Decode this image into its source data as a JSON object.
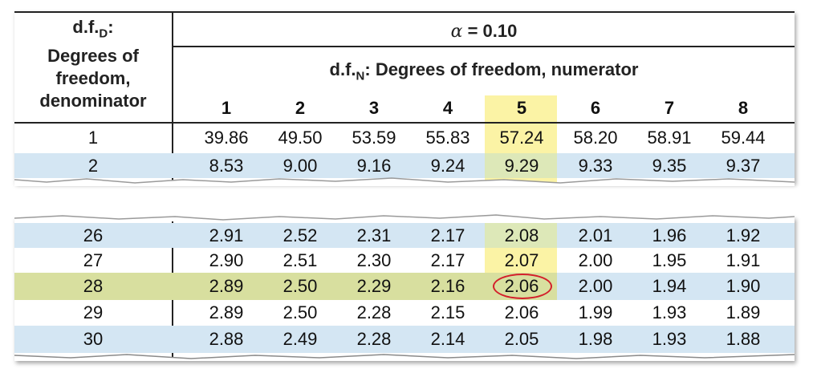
{
  "header": {
    "dfd_symbol": "d.f.",
    "dfd_sub": "D",
    "dfd_colon": ":",
    "dfd_lines": [
      "Degrees of",
      "freedom,",
      "denominator"
    ],
    "alpha_symbol": "α",
    "alpha_eq": "= 0.10",
    "dfn_symbol": "d.f.",
    "dfn_sub": "N",
    "dfn_text": ": Degrees of freedom, numerator",
    "columns": [
      "1",
      "2",
      "3",
      "4",
      "5",
      "6",
      "7",
      "8"
    ]
  },
  "highlight_column": "5",
  "circled_value": "2.06",
  "colors": {
    "blue_row": "#d4e6f3",
    "olive_row": "#d8df9f",
    "yellow_column": "#fbf3a5",
    "circle": "#d41f2a"
  },
  "top_rows": [
    {
      "df": "1",
      "values": [
        "39.86",
        "49.50",
        "53.59",
        "55.83",
        "57.24",
        "58.20",
        "58.91",
        "59.44"
      ]
    },
    {
      "df": "2",
      "values": [
        "8.53",
        "9.00",
        "9.16",
        "9.24",
        "9.29",
        "9.33",
        "9.35",
        "9.37"
      ]
    }
  ],
  "bottom_rows": [
    {
      "df": "26",
      "values": [
        "2.91",
        "2.52",
        "2.31",
        "2.17",
        "2.08",
        "2.01",
        "1.96",
        "1.92"
      ]
    },
    {
      "df": "27",
      "values": [
        "2.90",
        "2.51",
        "2.30",
        "2.17",
        "2.07",
        "2.00",
        "1.95",
        "1.91"
      ]
    },
    {
      "df": "28",
      "values": [
        "2.89",
        "2.50",
        "2.29",
        "2.16",
        "2.06",
        "2.00",
        "1.94",
        "1.90"
      ]
    },
    {
      "df": "29",
      "values": [
        "2.89",
        "2.50",
        "2.28",
        "2.15",
        "2.06",
        "1.99",
        "1.93",
        "1.89"
      ]
    },
    {
      "df": "30",
      "values": [
        "2.88",
        "2.49",
        "2.28",
        "2.14",
        "2.05",
        "1.98",
        "1.93",
        "1.88"
      ]
    }
  ]
}
